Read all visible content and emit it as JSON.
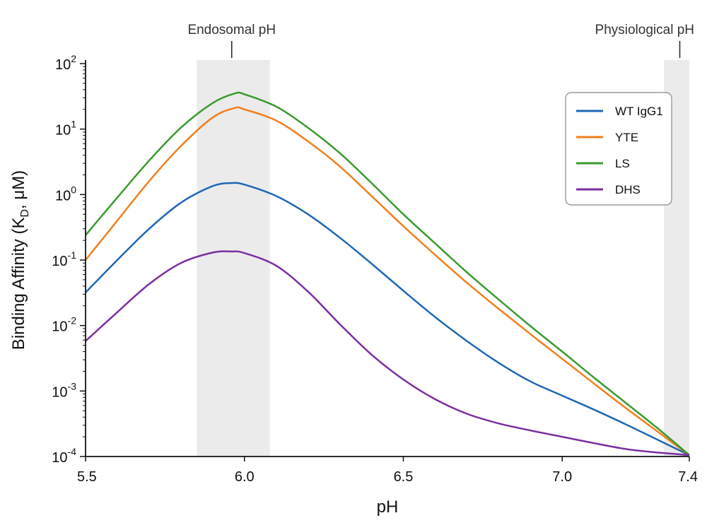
{
  "chart_data": {
    "type": "line",
    "xlabel": "pH",
    "ylabel": "Binding Affinity (K",
    "ylabel_sub": "D",
    "ylabel_suffix": ", μM)",
    "xlim": [
      5.5,
      7.4
    ],
    "ylim": [
      0.0001,
      100
    ],
    "yscale": "log",
    "grid": false,
    "legend_position": "top-right",
    "x_ticks": [
      {
        "value": 5.5,
        "label": "5.5"
      },
      {
        "value": 6.0,
        "label": "6.0"
      },
      {
        "value": 6.5,
        "label": "6.5"
      },
      {
        "value": 7.0,
        "label": "7.0"
      },
      {
        "value": 7.4,
        "label": "7.4"
      }
    ],
    "y_ticks": [
      {
        "value": 100,
        "base": "10",
        "exp": "2"
      },
      {
        "value": 10,
        "base": "10",
        "exp": "1"
      },
      {
        "value": 1,
        "base": "10",
        "exp": "0"
      },
      {
        "value": 0.1,
        "base": "10",
        "exp": "-1"
      },
      {
        "value": 0.01,
        "base": "10",
        "exp": "-2"
      },
      {
        "value": 0.001,
        "base": "10",
        "exp": "-3"
      },
      {
        "value": 0.0001,
        "base": "10",
        "exp": "-4"
      }
    ],
    "annotations": {
      "endosomal": {
        "label": "Endosomal pH",
        "marker_x": 5.96,
        "band": [
          5.85,
          6.08
        ]
      },
      "physiological": {
        "label": "Physiological pH",
        "marker_x": 7.37,
        "band": [
          7.32,
          7.4
        ]
      }
    },
    "band_color": "#ebebeb",
    "series": [
      {
        "name": "WT IgG1",
        "color": "#1f67b4",
        "x": [
          5.5,
          5.6,
          5.7,
          5.8,
          5.9,
          5.96,
          6.0,
          6.1,
          6.2,
          6.3,
          6.4,
          6.5,
          6.6,
          6.7,
          6.8,
          6.9,
          7.0,
          7.1,
          7.2,
          7.3,
          7.4
        ],
        "y": [
          0.032,
          0.1,
          0.3,
          0.75,
          1.35,
          1.5,
          1.42,
          0.95,
          0.5,
          0.22,
          0.088,
          0.034,
          0.0135,
          0.0058,
          0.0027,
          0.0014,
          0.00085,
          0.00052,
          0.00031,
          0.00018,
          0.000105
        ]
      },
      {
        "name": "YTE",
        "color": "#f27f1b",
        "x": [
          5.5,
          5.6,
          5.7,
          5.8,
          5.9,
          5.97,
          6.0,
          6.1,
          6.2,
          6.3,
          6.4,
          6.5,
          6.6,
          6.7,
          6.8,
          6.9,
          7.0,
          7.1,
          7.2,
          7.3,
          7.4
        ],
        "y": [
          0.1,
          0.4,
          1.6,
          5.5,
          15,
          21,
          20,
          13.5,
          6.5,
          2.7,
          0.95,
          0.33,
          0.12,
          0.045,
          0.018,
          0.0074,
          0.0031,
          0.0013,
          0.00055,
          0.00024,
          0.000105
        ]
      },
      {
        "name": "LS",
        "color": "#3a9a2e",
        "x": [
          5.5,
          5.6,
          5.7,
          5.8,
          5.9,
          5.97,
          6.0,
          6.1,
          6.2,
          6.3,
          6.4,
          6.5,
          6.6,
          6.7,
          6.8,
          6.9,
          7.0,
          7.1,
          7.2,
          7.3,
          7.4
        ],
        "y": [
          0.24,
          0.9,
          3.3,
          10.5,
          25,
          35,
          34,
          22,
          10.5,
          4.3,
          1.5,
          0.5,
          0.18,
          0.065,
          0.025,
          0.0098,
          0.004,
          0.0016,
          0.00066,
          0.00027,
          0.000105
        ]
      },
      {
        "name": "DHS",
        "color": "#7b2fa0",
        "x": [
          5.5,
          5.6,
          5.7,
          5.8,
          5.9,
          5.96,
          6.0,
          6.1,
          6.2,
          6.3,
          6.4,
          6.5,
          6.6,
          6.7,
          6.8,
          6.9,
          7.0,
          7.1,
          7.2,
          7.3,
          7.4
        ],
        "y": [
          0.0058,
          0.016,
          0.043,
          0.09,
          0.13,
          0.135,
          0.128,
          0.082,
          0.033,
          0.0105,
          0.0036,
          0.0015,
          0.00075,
          0.00045,
          0.00032,
          0.00025,
          0.0002,
          0.00016,
          0.00013,
          0.000115,
          0.000105
        ]
      }
    ]
  }
}
